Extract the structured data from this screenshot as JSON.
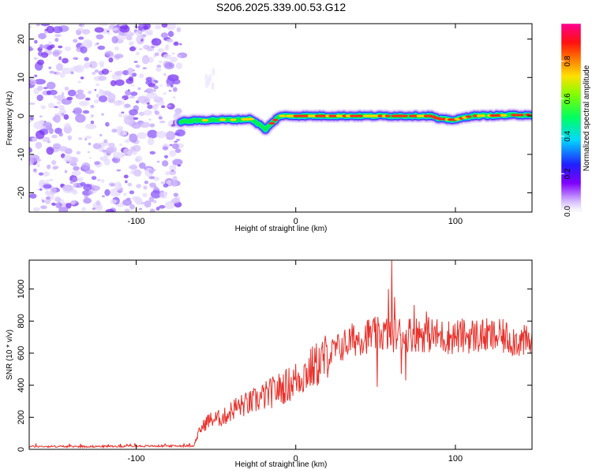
{
  "title": "S206.2025.339.00.53.G12",
  "chart_data": [
    {
      "type": "heatmap",
      "title": "S206.2025.339.00.53.G12",
      "xlabel": "Height of straight line (km)",
      "ylabel": "Frequency (Hz)",
      "xlim": [
        -167,
        148
      ],
      "ylim": [
        -25,
        24
      ],
      "xticks": [
        -100,
        0,
        100
      ],
      "yticks": [
        -20,
        -10,
        0,
        10,
        20
      ],
      "noise_region_x": [
        -167,
        -71
      ],
      "signal_centerline": [
        {
          "x": -72,
          "y": -1.5
        },
        {
          "x": -62,
          "y": -1.2
        },
        {
          "x": -50,
          "y": -1.0
        },
        {
          "x": -38,
          "y": -1.0
        },
        {
          "x": -28,
          "y": -0.8
        },
        {
          "x": -22,
          "y": -2.5
        },
        {
          "x": -19,
          "y": -3.5
        },
        {
          "x": -14,
          "y": -1.5
        },
        {
          "x": -10,
          "y": 0.0
        },
        {
          "x": 0,
          "y": 0.0
        },
        {
          "x": 30,
          "y": 0.0
        },
        {
          "x": 60,
          "y": 0.0
        },
        {
          "x": 85,
          "y": 0.0
        },
        {
          "x": 90,
          "y": -0.8
        },
        {
          "x": 100,
          "y": -1.0
        },
        {
          "x": 110,
          "y": 0.0
        },
        {
          "x": 147,
          "y": 0.3
        }
      ],
      "colorbar": {
        "label": "Normalized spectral amplitude",
        "ticks": [
          0.0,
          0.2,
          0.4,
          0.6,
          0.8
        ],
        "tick_labels": [
          "0.0",
          "0.2",
          "0.4",
          "0.6",
          "0.8"
        ],
        "range": [
          0,
          1
        ],
        "colors": [
          "#ffffff",
          "#c8a8ff",
          "#8000ff",
          "#2020ff",
          "#00e0ff",
          "#00ff40",
          "#c0ff00",
          "#ffa000",
          "#ff2020",
          "#ff00a0"
        ]
      }
    },
    {
      "type": "line",
      "xlabel": "Height of straight line (km)",
      "ylabel": "SNR (10 * v/v)",
      "xlim": [
        -167,
        148
      ],
      "ylim": [
        0,
        1180
      ],
      "xticks": [
        -100,
        0,
        100
      ],
      "yticks": [
        0,
        200,
        400,
        600,
        800,
        1000
      ],
      "series": [
        {
          "name": "SNR",
          "color": "#e8302a",
          "envelope": [
            {
              "x": -167,
              "y": 18
            },
            {
              "x": -130,
              "y": 18
            },
            {
              "x": -100,
              "y": 20
            },
            {
              "x": -64,
              "y": 22
            },
            {
              "x": -60,
              "y": 120
            },
            {
              "x": -55,
              "y": 180
            },
            {
              "x": -45,
              "y": 200
            },
            {
              "x": -38,
              "y": 260
            },
            {
              "x": -28,
              "y": 290
            },
            {
              "x": -20,
              "y": 330
            },
            {
              "x": -12,
              "y": 370
            },
            {
              "x": -5,
              "y": 400
            },
            {
              "x": 5,
              "y": 470
            },
            {
              "x": 15,
              "y": 540
            },
            {
              "x": 25,
              "y": 620
            },
            {
              "x": 35,
              "y": 680
            },
            {
              "x": 45,
              "y": 710
            },
            {
              "x": 55,
              "y": 720
            },
            {
              "x": 65,
              "y": 720
            },
            {
              "x": 80,
              "y": 720
            },
            {
              "x": 95,
              "y": 700
            },
            {
              "x": 110,
              "y": 710
            },
            {
              "x": 130,
              "y": 700
            },
            {
              "x": 148,
              "y": 660
            }
          ],
          "spikes": [
            {
              "x": 60,
              "y": 1180
            },
            {
              "x": 58,
              "y": 1000
            },
            {
              "x": 62,
              "y": 950
            },
            {
              "x": 51,
              "y": 390
            },
            {
              "x": 74,
              "y": 900
            },
            {
              "x": 69,
              "y": 430
            },
            {
              "x": 82,
              "y": 860
            },
            {
              "x": 66,
              "y": 470
            }
          ]
        }
      ]
    }
  ]
}
